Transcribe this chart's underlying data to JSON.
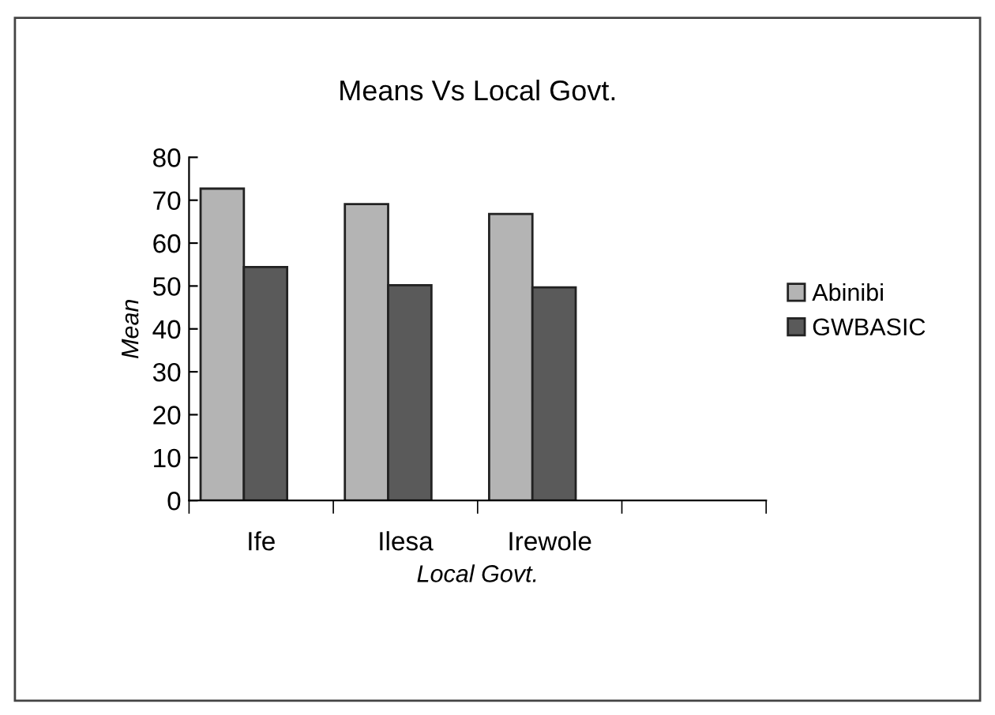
{
  "chart_data": {
    "type": "bar",
    "title": "Means Vs Local Govt.",
    "xlabel": "Local Govt.",
    "ylabel": "Mean",
    "categories": [
      "Ife",
      "Ilesa",
      "Irewole",
      null
    ],
    "series": [
      {
        "name": "Abinibi",
        "color": "#b4b4b4",
        "values": [
          72.7,
          69.1,
          66.8,
          null
        ]
      },
      {
        "name": "GWBASIC",
        "color": "#5a5a5a",
        "values": [
          54.4,
          50.2,
          49.7,
          null
        ]
      }
    ],
    "ylim": [
      0,
      80
    ],
    "yticks": [
      0,
      10,
      20,
      30,
      40,
      50,
      60,
      70,
      80
    ],
    "grid": false,
    "legend": "right"
  }
}
